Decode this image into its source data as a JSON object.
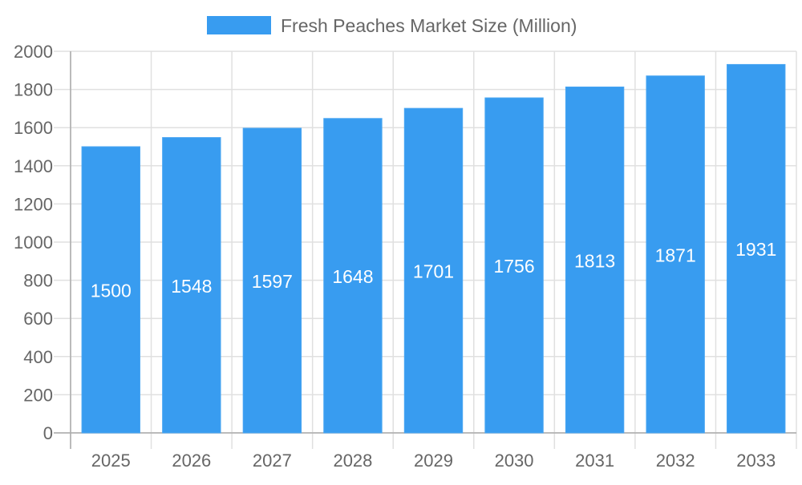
{
  "chart_data": {
    "type": "bar",
    "title": "",
    "xlabel": "",
    "ylabel": "",
    "categories": [
      "2025",
      "2026",
      "2027",
      "2028",
      "2029",
      "2030",
      "2031",
      "2032",
      "2033"
    ],
    "series": [
      {
        "name": "Fresh Peaches Market Size (Million)",
        "values": [
          1500,
          1548,
          1597,
          1648,
          1701,
          1756,
          1813,
          1871,
          1931
        ],
        "color": "#389cf0"
      }
    ],
    "ylim": [
      0,
      2000
    ],
    "yticks": [
      0,
      200,
      400,
      600,
      800,
      1000,
      1200,
      1400,
      1600,
      1800,
      2000
    ],
    "grid": true,
    "legend": "top-center",
    "data_labels": true
  }
}
